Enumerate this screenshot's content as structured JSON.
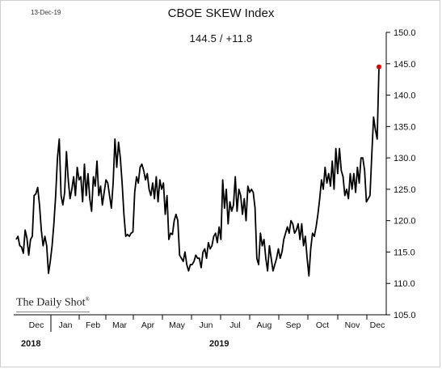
{
  "date_stamp": "13-Dec-19",
  "brand": "The Daily Shot",
  "chart_data": {
    "type": "line",
    "title": "CBOE SKEW Index",
    "subtitle": "144.5  /  +11.8",
    "xlabel": "",
    "ylabel": "",
    "ylim": [
      105,
      150
    ],
    "y_ticks": [
      "150.0",
      "145.0",
      "140.0",
      "135.0",
      "130.0",
      "125.0",
      "120.0",
      "115.0",
      "110.0",
      "105.0"
    ],
    "x_ticks": [
      "Dec",
      "Jan",
      "Feb",
      "Mar",
      "Apr",
      "May",
      "Jun",
      "Jul",
      "Aug",
      "Sep",
      "Oct",
      "Nov",
      "Dec"
    ],
    "years": [
      "2018",
      "2019"
    ],
    "grid": false,
    "legend": "none",
    "line_color": "#000000",
    "last_point_color": "#dd0000",
    "series": [
      {
        "values": [
          117.0,
          117.5,
          116.0,
          115.8,
          114.8,
          118.5,
          117.2,
          114.5,
          117.0,
          117.5,
          124.0,
          124.3,
          125.3,
          122.5,
          118.5,
          116.0,
          117.5,
          116.0,
          111.6,
          113.5,
          116.0,
          119.5,
          124.0,
          130.0,
          133.0,
          124.0,
          122.5,
          124.5,
          131.0,
          126.5,
          123.5,
          125.0,
          127.0,
          124.0,
          128.5,
          126.5,
          127.0,
          123.0,
          129.0,
          124.0,
          127.5,
          123.5,
          121.5,
          127.0,
          125.5,
          129.5,
          124.0,
          125.5,
          122.5,
          124.5,
          126.5,
          126.0,
          124.0,
          122.0,
          126.0,
          133.0,
          128.5,
          132.5,
          130.0,
          126.0,
          121.0,
          117.5,
          117.8,
          117.5,
          118.0,
          118.2,
          124.5,
          127.0,
          126.0,
          128.5,
          129.0,
          128.0,
          126.5,
          127.5,
          125.0,
          124.0,
          126.0,
          123.5,
          127.0,
          123.0,
          126.5,
          125.0,
          126.0,
          121.0,
          124.0,
          117.0,
          118.0,
          117.8,
          120.0,
          121.0,
          120.0,
          114.5,
          114.0,
          113.5,
          115.0,
          113.0,
          112.0,
          113.0,
          113.0,
          113.5,
          114.5,
          114.0,
          114.0,
          112.5,
          115.0,
          115.5,
          114.0,
          116.5,
          115.5,
          116.0,
          117.5,
          118.0,
          116.5,
          119.0,
          117.0,
          126.5,
          122.0,
          125.0,
          119.5,
          123.0,
          121.5,
          122.5,
          127.0,
          121.5,
          125.0,
          124.0,
          121.0,
          123.5,
          120.0,
          125.5,
          124.5,
          125.0,
          124.5,
          122.0,
          114.0,
          113.0,
          118.0,
          116.0,
          117.0,
          114.0,
          112.0,
          116.0,
          114.0,
          112.0,
          113.0,
          114.0,
          115.5,
          114.0,
          115.0,
          117.0,
          118.0,
          119.0,
          118.0,
          120.0,
          119.5,
          118.0,
          118.5,
          119.5,
          117.0,
          119.5,
          116.0,
          117.5,
          114.0,
          111.2,
          115.5,
          118.0,
          117.5,
          119.0,
          121.0,
          123.5,
          126.5,
          125.0,
          128.5,
          126.0,
          127.5,
          125.5,
          129.5,
          125.0,
          131.5,
          127.5,
          131.5,
          128.0,
          127.0,
          124.0,
          125.0,
          123.5,
          127.5,
          125.0,
          127.5,
          124.5,
          128.5,
          126.0,
          130.0,
          130.0,
          128.0,
          123.0,
          123.5,
          124.0,
          130.5,
          136.5,
          134.5,
          133.0,
          144.5
        ]
      }
    ]
  }
}
